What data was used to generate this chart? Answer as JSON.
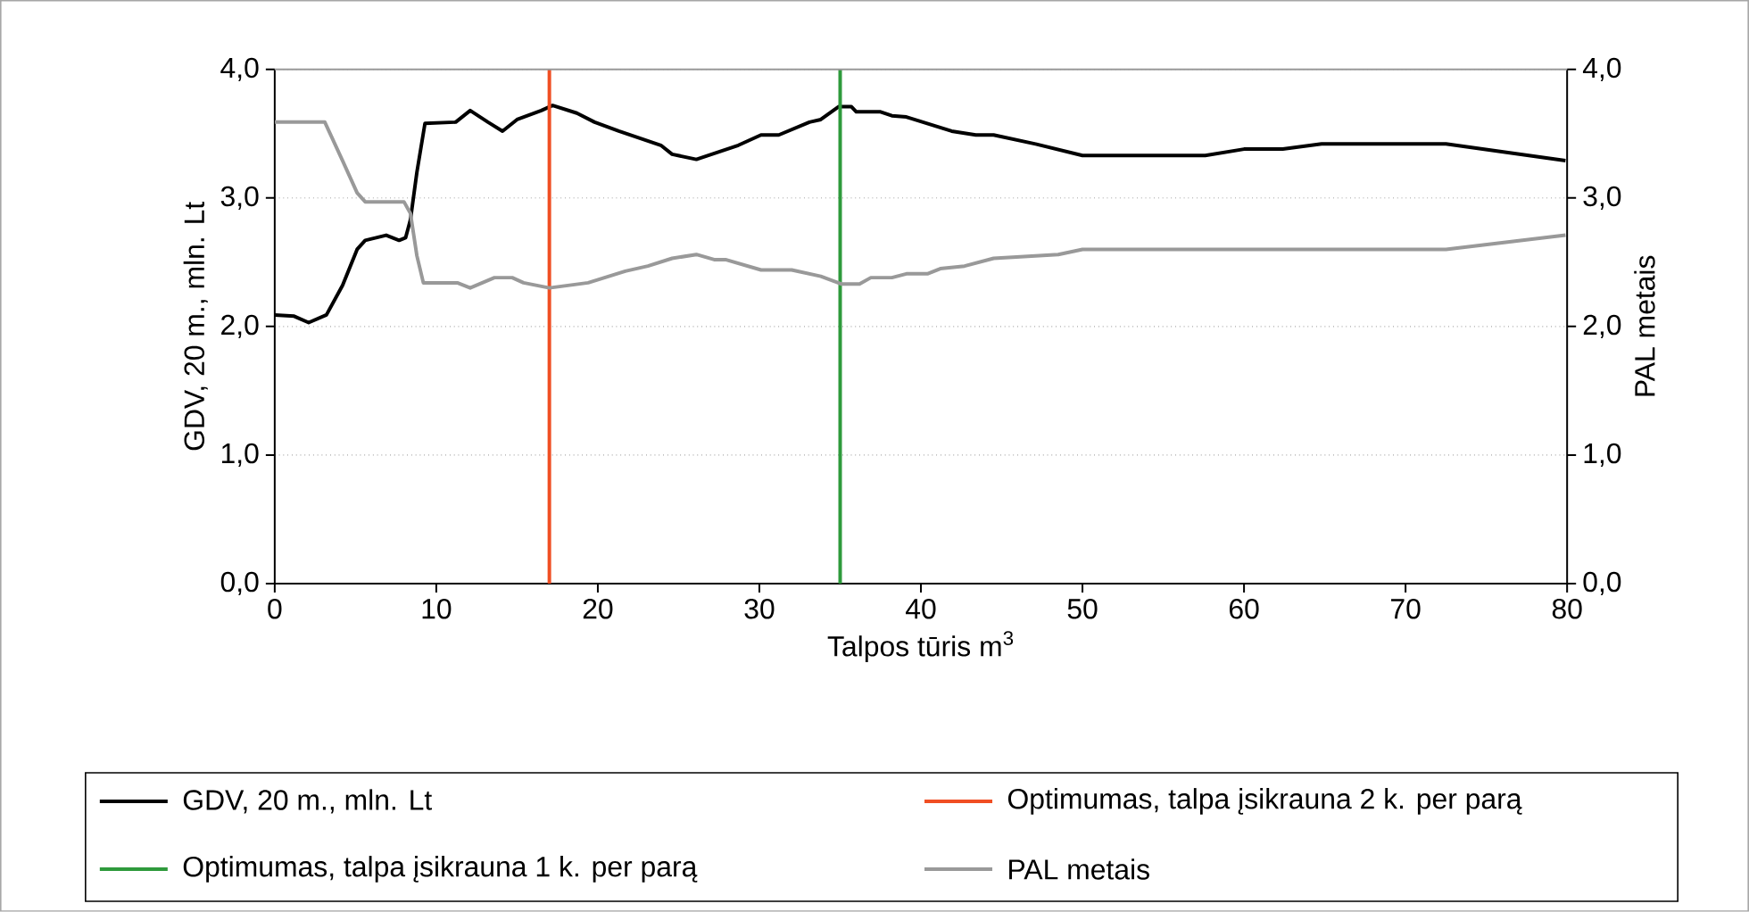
{
  "chart_data": {
    "type": "line",
    "xlabel": "Talpos tūris m$^{3}$",
    "ylabel": "GDV, 20 m., mln. Lt",
    "y2label": "PAL metais",
    "xlim": [
      0,
      80
    ],
    "xticks": [
      0,
      10,
      20,
      30,
      40,
      50,
      60,
      70,
      80
    ],
    "ylim": [
      0,
      4
    ],
    "yticks": [
      {
        "value": 0,
        "label": "0,0"
      },
      {
        "value": 1,
        "label": "1,0"
      },
      {
        "value": 2,
        "label": "2,0"
      },
      {
        "value": 3,
        "label": "3,0"
      },
      {
        "value": 4,
        "label": "4,0"
      }
    ],
    "y2lim": [
      0,
      4
    ],
    "y2ticks": [
      {
        "value": 0,
        "label": "0,0"
      },
      {
        "value": 1,
        "label": "1,0"
      },
      {
        "value": 2,
        "label": "2,0"
      },
      {
        "value": 3,
        "label": "3,0"
      },
      {
        "value": 4,
        "label": "4,0"
      }
    ],
    "grid": "y",
    "legend": "bottom",
    "marker": "none",
    "line_style": "solid",
    "series": [
      {
        "name": "GDV, 20 m., mln. Lt",
        "color": "#000000",
        "x": [
          0,
          1.2,
          2.1,
          3.2,
          4.2,
          5.1,
          5.6,
          6.9,
          7.7,
          8.1,
          8.4,
          8.8,
          9.3,
          11.2,
          12.1,
          13.2,
          14.1,
          15.0,
          16.5,
          17.2,
          18.7,
          19.8,
          21.3,
          23.9,
          24.6,
          26.1,
          28.7,
          30.1,
          31.2,
          33.1,
          33.8,
          34.9,
          35.7,
          36.0,
          37.5,
          38.2,
          39.1,
          41.9,
          43.4,
          44.5,
          47.1,
          50.0,
          57.6,
          60.0,
          62.4,
          64.8,
          72.5,
          79.9
        ],
        "values": [
          2.09,
          2.08,
          2.03,
          2.09,
          2.32,
          2.6,
          2.67,
          2.71,
          2.67,
          2.69,
          2.83,
          3.2,
          3.58,
          3.59,
          3.68,
          3.59,
          3.52,
          3.61,
          3.68,
          3.72,
          3.66,
          3.59,
          3.52,
          3.41,
          3.34,
          3.3,
          3.41,
          3.49,
          3.49,
          3.59,
          3.61,
          3.71,
          3.71,
          3.67,
          3.67,
          3.64,
          3.63,
          3.52,
          3.49,
          3.49,
          3.42,
          3.33,
          3.33,
          3.38,
          3.38,
          3.42,
          3.42,
          3.29
        ]
      },
      {
        "name": "PAL metais",
        "color": "#999999",
        "axis": "y2",
        "x": [
          0,
          3.1,
          4.2,
          5.1,
          5.6,
          8.0,
          8.4,
          8.8,
          9.2,
          11.3,
          12.1,
          13.6,
          14.7,
          15.4,
          17.0,
          19.4,
          21.7,
          23.1,
          24.6,
          26.1,
          27.2,
          27.9,
          30.1,
          32.0,
          33.8,
          35.1,
          36.2,
          36.9,
          38.2,
          39.1,
          40.4,
          41.2,
          42.7,
          44.5,
          48.5,
          50.0,
          72.5,
          79.9
        ],
        "values": [
          3.59,
          3.59,
          3.29,
          3.04,
          2.97,
          2.97,
          2.88,
          2.55,
          2.34,
          2.34,
          2.3,
          2.38,
          2.38,
          2.34,
          2.3,
          2.34,
          2.43,
          2.47,
          2.53,
          2.56,
          2.52,
          2.52,
          2.44,
          2.44,
          2.39,
          2.33,
          2.33,
          2.38,
          2.38,
          2.41,
          2.41,
          2.45,
          2.47,
          2.53,
          2.56,
          2.6,
          2.6,
          2.71
        ]
      }
    ],
    "ref_lines": [
      {
        "axis": "x",
        "value": 17,
        "label": "Optimumas, talpa įsikrauna 2 k. per parą",
        "color": "#f04e23",
        "line_style": "solid"
      },
      {
        "axis": "x",
        "value": 35,
        "label": "Optimumas, talpa įsikrauna 1 k. per parą",
        "color": "#2e9a3c",
        "line_style": "solid"
      }
    ]
  }
}
